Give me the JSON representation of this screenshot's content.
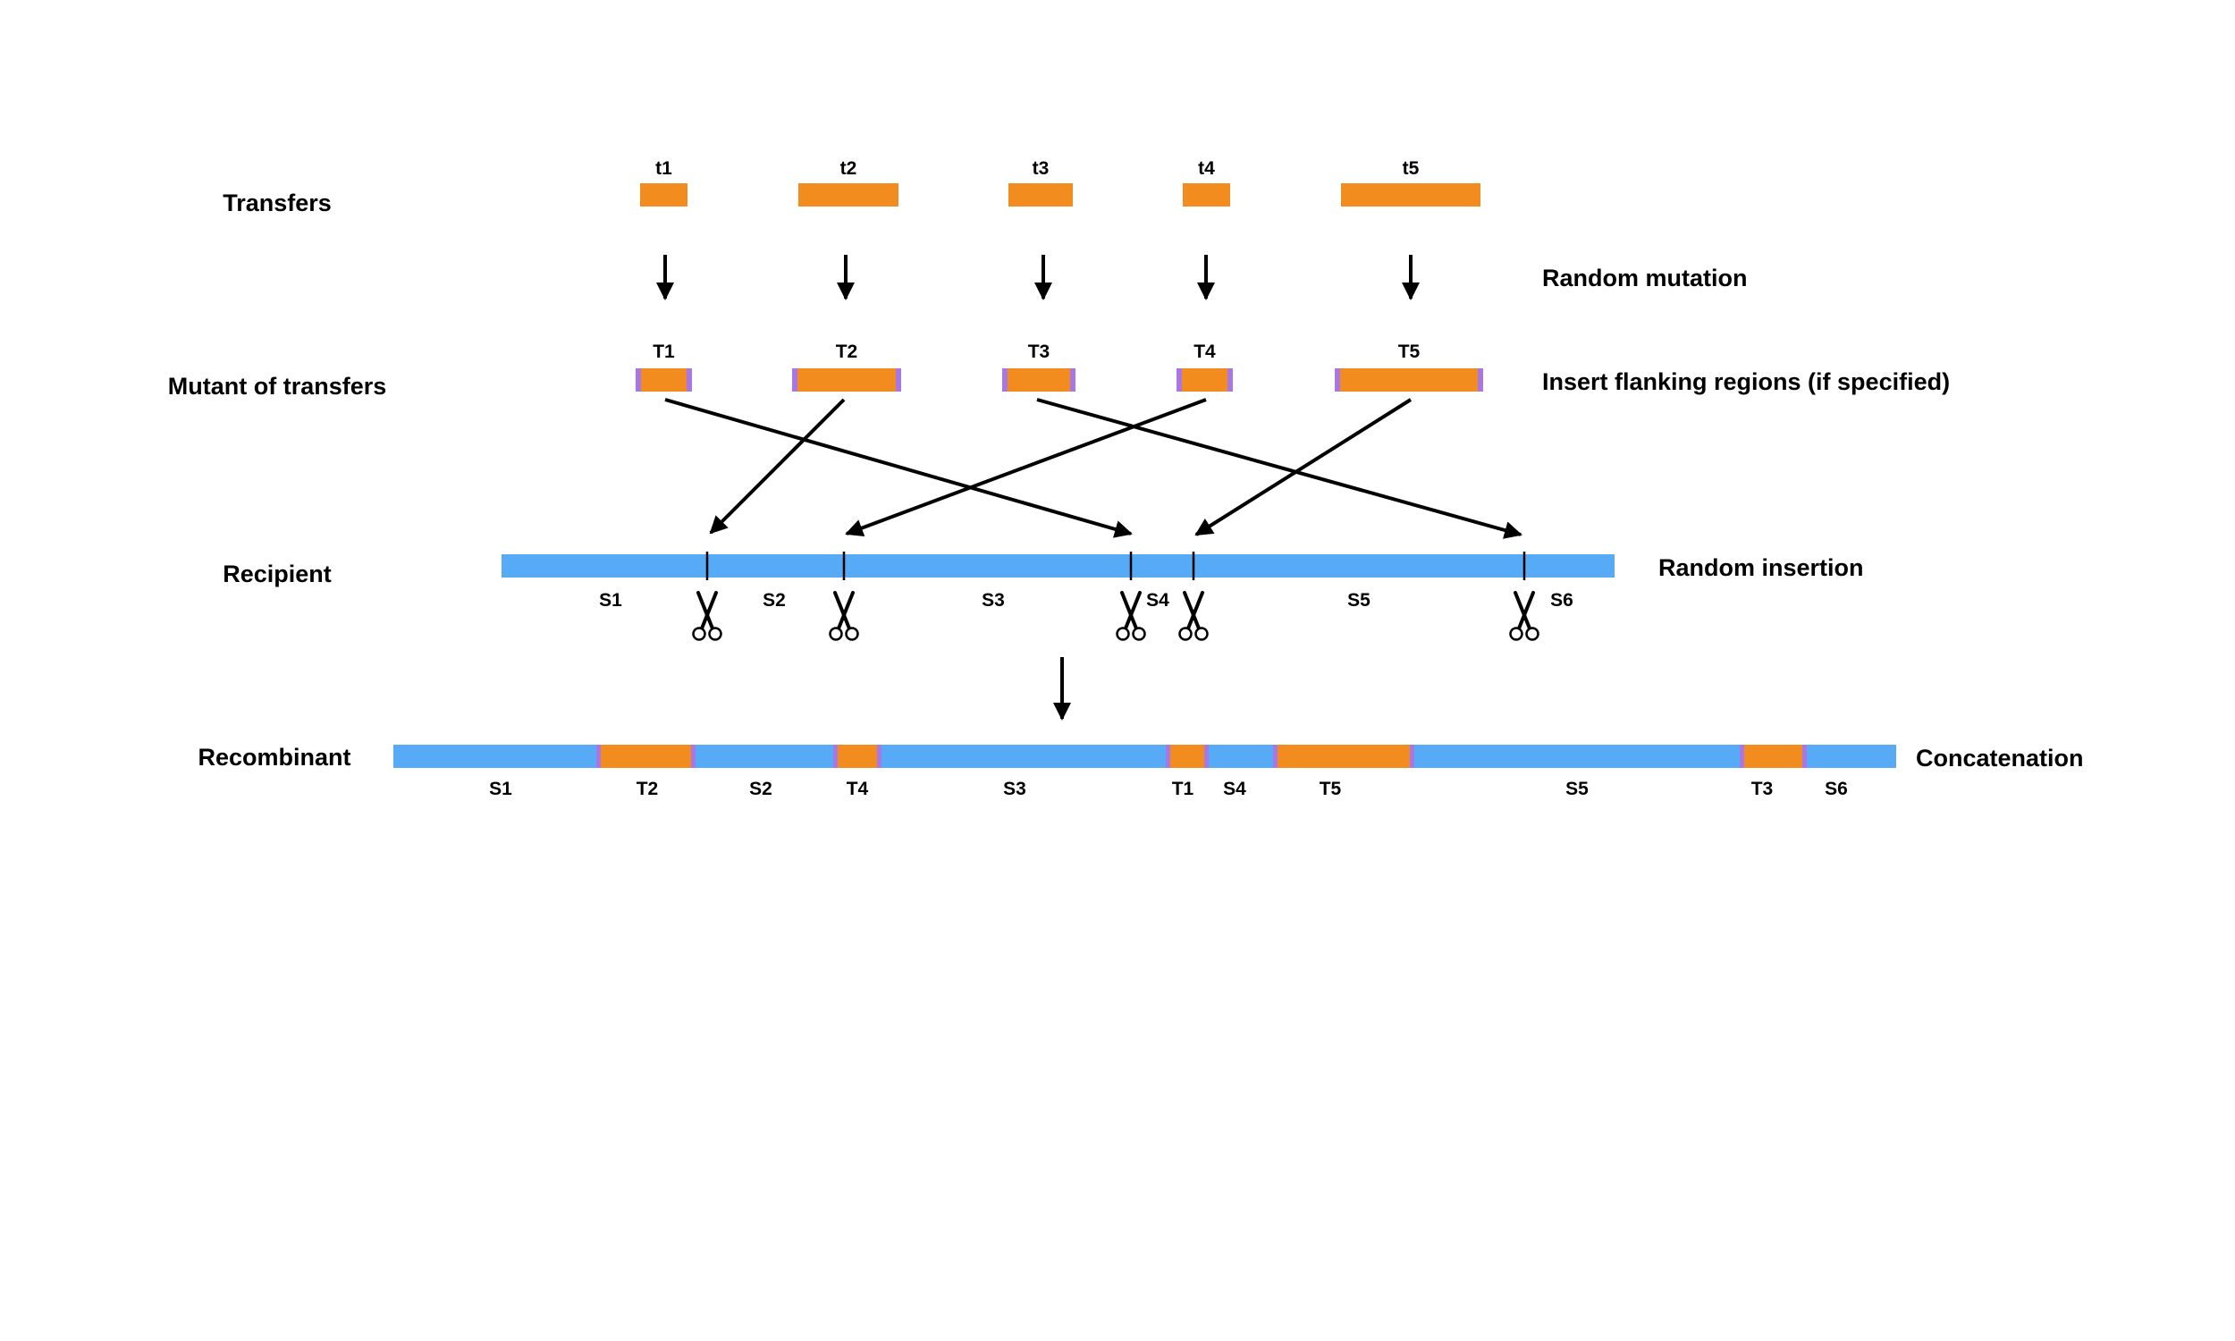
{
  "colors": {
    "transfer": "#f28c1e",
    "recipient": "#56aaf6",
    "flank": "#a877e6",
    "arrow": "#000000"
  },
  "labels": {
    "transfers": "Transfers",
    "mutants": "Mutant of transfers",
    "recipient": "Recipient",
    "recombinant": "Recombinant",
    "random_mutation": "Random mutation",
    "flanking": "Insert flanking regions (if specified)",
    "random_insertion": "Random insertion",
    "concatenation": "Concatenation"
  },
  "transfers": [
    "t1",
    "t2",
    "t3",
    "t4",
    "t5"
  ],
  "mutants": [
    "T1",
    "T2",
    "T3",
    "T4",
    "T5"
  ],
  "recipient_segments": [
    "S1",
    "S2",
    "S3",
    "S4",
    "S5",
    "S6"
  ],
  "recombinant_segments": [
    "S1",
    "T2",
    "S2",
    "T4",
    "S3",
    "T1",
    "S4",
    "T5",
    "S5",
    "T3",
    "S6"
  ],
  "icons": {
    "scissors": "scissors-icon",
    "arrow": "down-arrow-icon"
  }
}
